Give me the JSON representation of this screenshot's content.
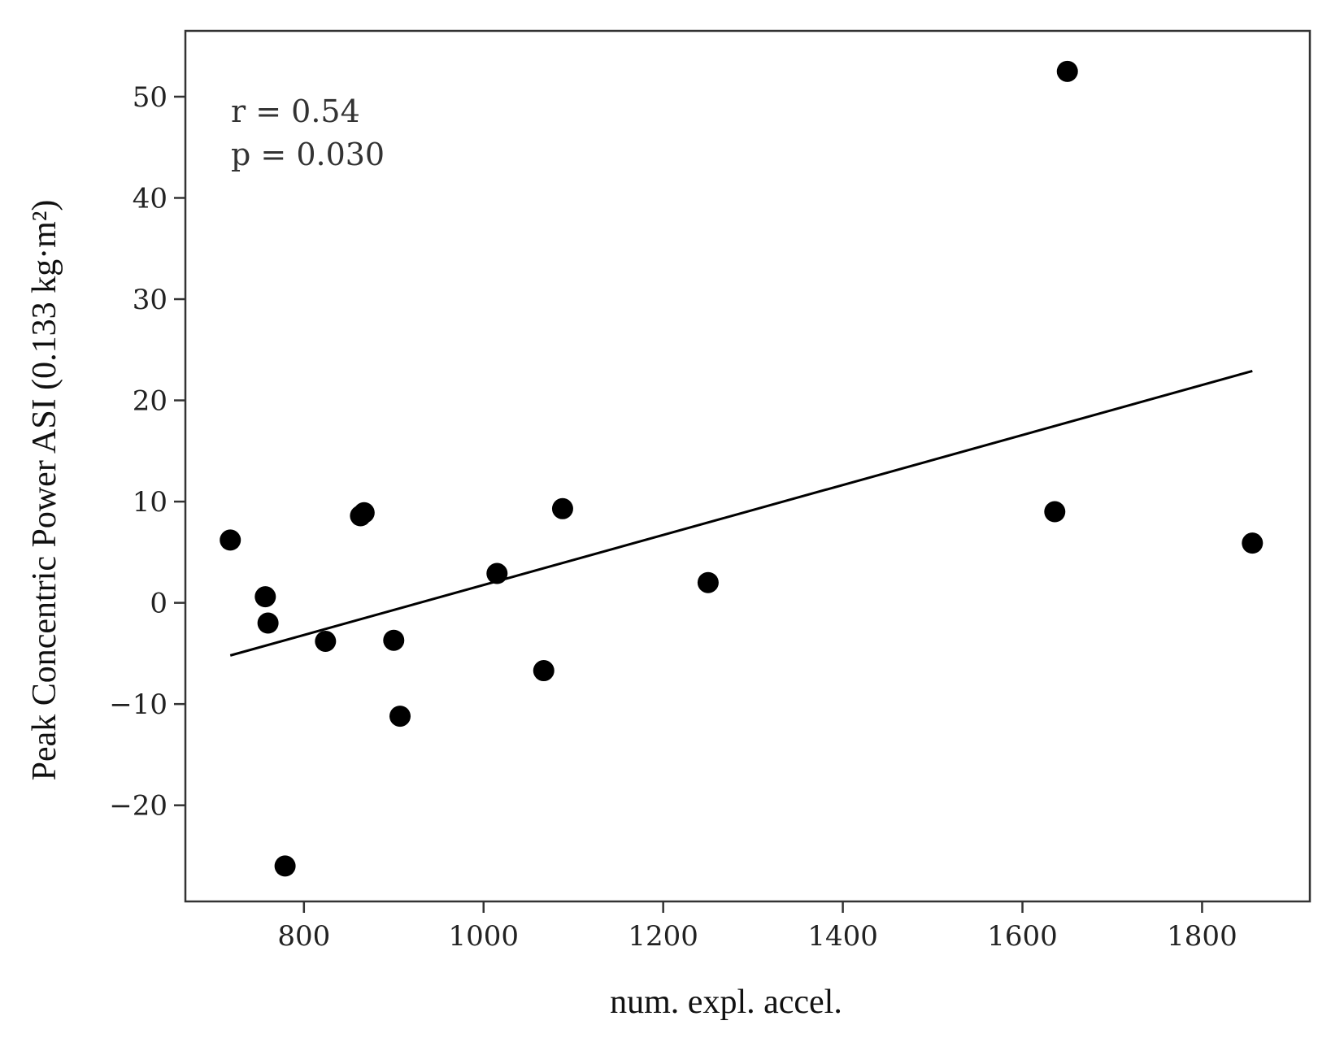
{
  "chart_data": {
    "type": "scatter",
    "xlabel": "num. expl. accel.",
    "ylabel": "Peak Concentric Power ASI (0.133 kg·m²)",
    "xlim": [
      668,
      1920
    ],
    "ylim": [
      -29.5,
      56.5
    ],
    "xticks": [
      800,
      1000,
      1200,
      1400,
      1600,
      1800
    ],
    "yticks": [
      -20,
      -10,
      0,
      10,
      20,
      30,
      40,
      50
    ],
    "xtick_labels": [
      "800",
      "1000",
      "1200",
      "1400",
      "1600",
      "1800"
    ],
    "ytick_labels": [
      "−20",
      "−10",
      "0",
      "10",
      "20",
      "30",
      "40",
      "50"
    ],
    "annotations": {
      "r": "r = 0.54",
      "p": "p = 0.030"
    },
    "grid": false,
    "points": [
      {
        "x": 718,
        "y": 6.2
      },
      {
        "x": 757,
        "y": 0.6
      },
      {
        "x": 760,
        "y": -2.0
      },
      {
        "x": 779,
        "y": -26.0
      },
      {
        "x": 824,
        "y": -3.8
      },
      {
        "x": 863,
        "y": 8.6
      },
      {
        "x": 867,
        "y": 8.9
      },
      {
        "x": 900,
        "y": -3.7
      },
      {
        "x": 907,
        "y": -11.2
      },
      {
        "x": 1015,
        "y": 2.9
      },
      {
        "x": 1067,
        "y": -6.7
      },
      {
        "x": 1088,
        "y": 9.3
      },
      {
        "x": 1250,
        "y": 2.0
      },
      {
        "x": 1636,
        "y": 9.0
      },
      {
        "x": 1650,
        "y": 52.5
      },
      {
        "x": 1856,
        "y": 5.9
      }
    ],
    "fit_line": {
      "x": [
        718,
        1856
      ],
      "y": [
        -5.2,
        22.9
      ]
    },
    "colors": {
      "points": "#000000",
      "line": "#000000",
      "frame": "#333333"
    }
  }
}
